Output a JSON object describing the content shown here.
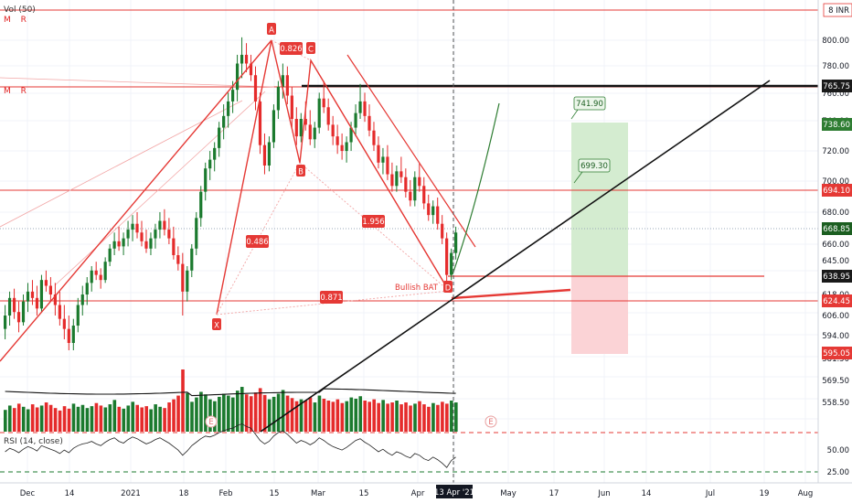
{
  "chart_data": {
    "type": "candlestick",
    "symbol_indicator": "Vol (50)",
    "rsi_indicator": "RSI (14, close)",
    "mr_labels": [
      "M R",
      "M R"
    ],
    "currency": "INR",
    "price_axis_ticks": [
      800.0,
      780.0,
      760.0,
      740.0,
      720.0,
      700.0,
      680.0,
      660.0,
      645.0,
      630.0,
      618.0,
      606.0,
      594.0,
      581.5,
      569.5,
      558.5
    ],
    "rsi_axis_ticks": [
      50.0,
      25.0
    ],
    "x_tick_labels": [
      "Dec",
      "14",
      "2021",
      "18",
      "Feb",
      "15",
      "Mar",
      "15",
      "Apr",
      "13 Apr '21",
      "May",
      "17",
      "Jun",
      "14",
      "Jul",
      "19",
      "Aug"
    ],
    "current_date_label": "13 Apr '21",
    "price_tags": [
      {
        "value": "765.75",
        "color": "#1a1a1a"
      },
      {
        "value": "738.60",
        "color": "#2e7d32"
      },
      {
        "value": "694.10",
        "color": "#e53935"
      },
      {
        "value": "668.85",
        "color": "#1b5e20"
      },
      {
        "value": "638.95",
        "color": "#1a1a1a"
      },
      {
        "value": "624.45",
        "color": "#e53935"
      },
      {
        "value": "595.05",
        "color": "#e53935"
      }
    ],
    "pattern": {
      "name": "Bullish BAT",
      "points": [
        "X",
        "A",
        "B",
        "C",
        "D"
      ],
      "ratios": [
        "0.826",
        "0.486",
        "1.956",
        "0.871"
      ]
    },
    "targets": [
      "741.90",
      "699.30"
    ],
    "event_markers": [
      "E",
      "E"
    ],
    "ohlc": [
      [
        598,
        612,
        592,
        606
      ],
      [
        606,
        620,
        600,
        616
      ],
      [
        616,
        622,
        604,
        608
      ],
      [
        608,
        614,
        596,
        602
      ],
      [
        602,
        618,
        600,
        614
      ],
      [
        614,
        626,
        608,
        620
      ],
      [
        620,
        628,
        612,
        616
      ],
      [
        616,
        624,
        606,
        610
      ],
      [
        610,
        632,
        608,
        628
      ],
      [
        628,
        636,
        620,
        624
      ],
      [
        624,
        630,
        614,
        618
      ],
      [
        618,
        626,
        606,
        612
      ],
      [
        612,
        620,
        600,
        604
      ],
      [
        604,
        612,
        592,
        598
      ],
      [
        598,
        606,
        586,
        590
      ],
      [
        590,
        604,
        586,
        600
      ],
      [
        600,
        616,
        596,
        612
      ],
      [
        612,
        624,
        606,
        618
      ],
      [
        618,
        630,
        612,
        626
      ],
      [
        626,
        640,
        620,
        636
      ],
      [
        636,
        644,
        628,
        632
      ],
      [
        632,
        638,
        622,
        628
      ],
      [
        628,
        648,
        626,
        644
      ],
      [
        644,
        660,
        640,
        656
      ],
      [
        656,
        668,
        650,
        662
      ],
      [
        662,
        672,
        654,
        658
      ],
      [
        658,
        668,
        650,
        664
      ],
      [
        664,
        676,
        658,
        670
      ],
      [
        670,
        680,
        662,
        674
      ],
      [
        674,
        682,
        664,
        668
      ],
      [
        668,
        676,
        658,
        662
      ],
      [
        662,
        670,
        652,
        656
      ],
      [
        656,
        668,
        650,
        664
      ],
      [
        664,
        674,
        656,
        670
      ],
      [
        670,
        682,
        664,
        676
      ],
      [
        676,
        684,
        666,
        670
      ],
      [
        670,
        678,
        660,
        664
      ],
      [
        664,
        672,
        646,
        650
      ],
      [
        650,
        658,
        636,
        642
      ],
      [
        642,
        652,
        606,
        620
      ],
      [
        620,
        640,
        614,
        636
      ],
      [
        636,
        660,
        630,
        656
      ],
      [
        656,
        682,
        650,
        678
      ],
      [
        678,
        700,
        672,
        696
      ],
      [
        696,
        716,
        690,
        712
      ],
      [
        712,
        724,
        704,
        718
      ],
      [
        718,
        730,
        710,
        726
      ],
      [
        726,
        744,
        720,
        740
      ],
      [
        740,
        756,
        732,
        748
      ],
      [
        748,
        764,
        740,
        758
      ],
      [
        758,
        772,
        750,
        766
      ],
      [
        766,
        790,
        758,
        784
      ],
      [
        784,
        802,
        774,
        790
      ],
      [
        790,
        798,
        778,
        784
      ],
      [
        784,
        790,
        772,
        776
      ],
      [
        776,
        782,
        752,
        758
      ],
      [
        758,
        764,
        722,
        728
      ],
      [
        728,
        736,
        708,
        714
      ],
      [
        714,
        734,
        710,
        730
      ],
      [
        730,
        756,
        726,
        752
      ],
      [
        752,
        772,
        746,
        768
      ],
      [
        768,
        784,
        760,
        776
      ],
      [
        776,
        782,
        756,
        762
      ],
      [
        762,
        768,
        740,
        746
      ],
      [
        746,
        754,
        728,
        734
      ],
      [
        734,
        750,
        730,
        746
      ],
      [
        746,
        758,
        738,
        742
      ],
      [
        742,
        752,
        728,
        732
      ],
      [
        732,
        744,
        726,
        740
      ],
      [
        740,
        764,
        736,
        760
      ],
      [
        760,
        772,
        750,
        754
      ],
      [
        754,
        760,
        738,
        742
      ],
      [
        742,
        748,
        728,
        734
      ],
      [
        734,
        742,
        722,
        728
      ],
      [
        728,
        736,
        718,
        724
      ],
      [
        724,
        734,
        716,
        730
      ],
      [
        730,
        744,
        724,
        740
      ],
      [
        740,
        756,
        734,
        750
      ],
      [
        750,
        770,
        746,
        758
      ],
      [
        758,
        764,
        744,
        748
      ],
      [
        748,
        756,
        734,
        738
      ],
      [
        738,
        744,
        724,
        728
      ],
      [
        728,
        734,
        712,
        716
      ],
      [
        716,
        726,
        708,
        720
      ],
      [
        720,
        728,
        704,
        708
      ],
      [
        708,
        716,
        696,
        700
      ],
      [
        700,
        714,
        696,
        710
      ],
      [
        710,
        720,
        702,
        706
      ],
      [
        706,
        712,
        692,
        696
      ],
      [
        696,
        704,
        686,
        690
      ],
      [
        690,
        710,
        686,
        706
      ],
      [
        706,
        716,
        696,
        700
      ],
      [
        700,
        706,
        684,
        688
      ],
      [
        688,
        694,
        676,
        680
      ],
      [
        680,
        690,
        674,
        686
      ],
      [
        686,
        692,
        670,
        674
      ],
      [
        674,
        680,
        660,
        664
      ],
      [
        664,
        668,
        626,
        632
      ],
      [
        632,
        656,
        628,
        652
      ],
      [
        652,
        672,
        646,
        668
      ]
    ],
    "volume_ratio": [
      0.35,
      0.42,
      0.38,
      0.45,
      0.4,
      0.36,
      0.44,
      0.39,
      0.42,
      0.47,
      0.43,
      0.38,
      0.34,
      0.41,
      0.37,
      0.45,
      0.4,
      0.43,
      0.38,
      0.41,
      0.46,
      0.42,
      0.39,
      0.44,
      0.51,
      0.4,
      0.37,
      0.42,
      0.48,
      0.43,
      0.39,
      0.41,
      0.36,
      0.44,
      0.4,
      0.38,
      0.47,
      0.52,
      0.58,
      1.0,
      0.62,
      0.48,
      0.55,
      0.64,
      0.6,
      0.52,
      0.49,
      0.56,
      0.61,
      0.58,
      0.55,
      0.66,
      0.72,
      0.6,
      0.57,
      0.63,
      0.7,
      0.59,
      0.52,
      0.56,
      0.61,
      0.67,
      0.58,
      0.54,
      0.49,
      0.52,
      0.5,
      0.55,
      0.47,
      0.58,
      0.53,
      0.5,
      0.48,
      0.52,
      0.46,
      0.49,
      0.55,
      0.53,
      0.57,
      0.5,
      0.48,
      0.52,
      0.46,
      0.51,
      0.45,
      0.47,
      0.5,
      0.44,
      0.47,
      0.42,
      0.45,
      0.49,
      0.44,
      0.4,
      0.46,
      0.43,
      0.48,
      0.45,
      0.5,
      0.47
    ],
    "rsi": [
      48,
      52,
      50,
      47,
      51,
      54,
      52,
      49,
      55,
      53,
      51,
      49,
      46,
      50,
      47,
      52,
      55,
      57,
      58,
      60,
      57,
      55,
      59,
      62,
      64,
      60,
      58,
      62,
      65,
      63,
      60,
      57,
      59,
      62,
      64,
      61,
      58,
      54,
      50,
      44,
      49,
      55,
      59,
      63,
      66,
      65,
      67,
      70,
      72,
      74,
      75,
      78,
      80,
      77,
      75,
      68,
      61,
      57,
      60,
      66,
      70,
      72,
      68,
      63,
      58,
      61,
      59,
      56,
      59,
      64,
      61,
      57,
      54,
      52,
      50,
      53,
      57,
      61,
      63,
      59,
      56,
      52,
      48,
      51,
      47,
      44,
      48,
      46,
      43,
      41,
      46,
      44,
      40,
      38,
      42,
      39,
      35,
      30,
      38,
      42
    ],
    "price_ylim": [
      550,
      815
    ]
  }
}
